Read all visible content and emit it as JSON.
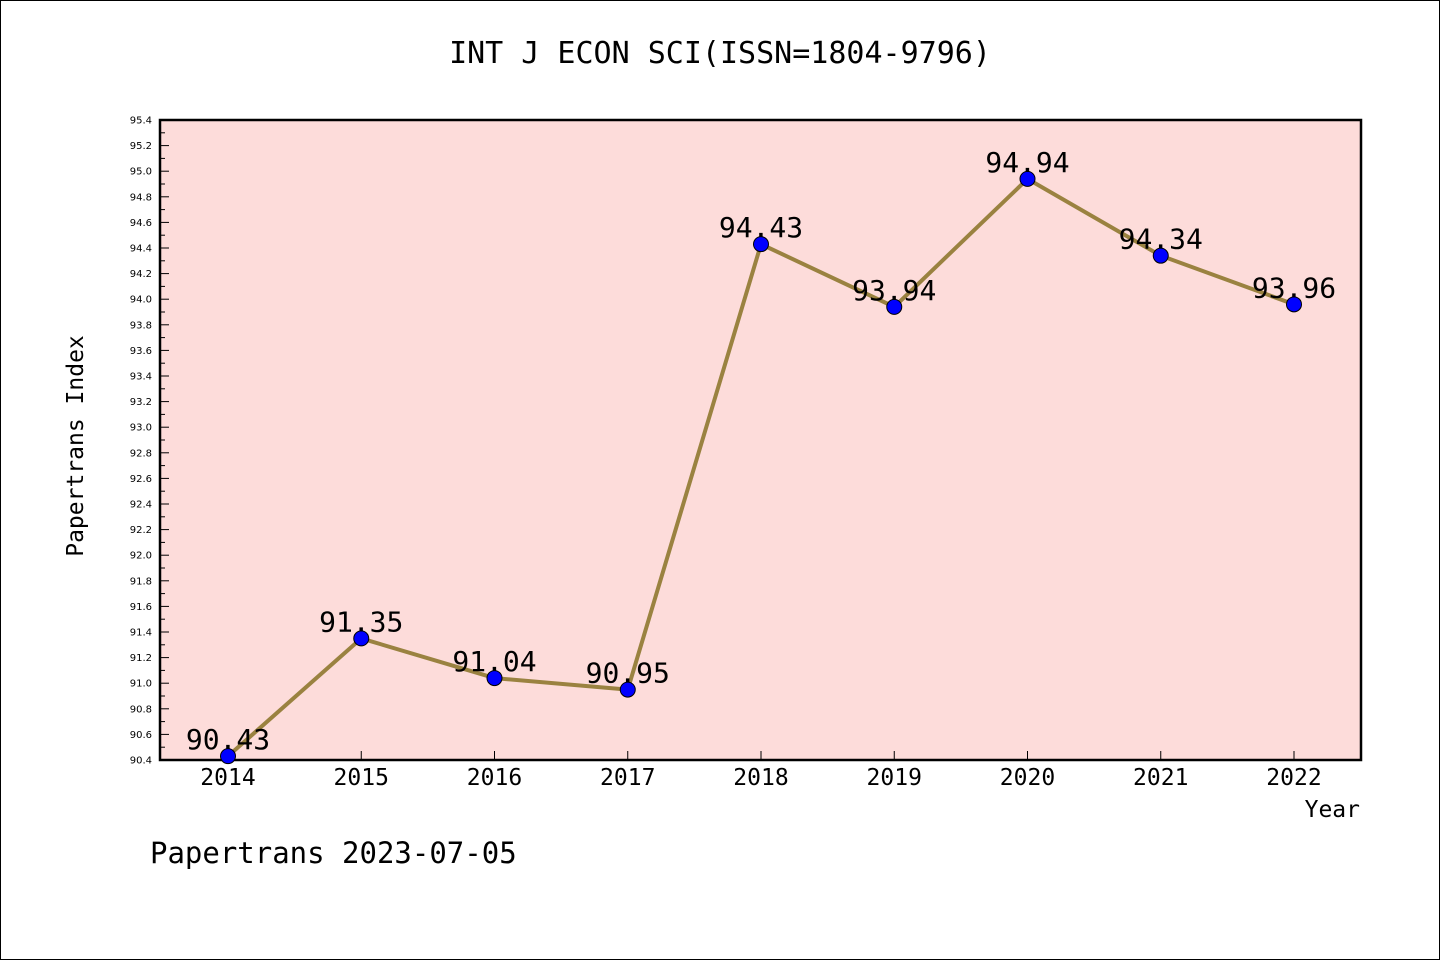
{
  "chart_data": {
    "type": "line",
    "title": "INT J ECON SCI(ISSN=1804-9796)",
    "xlabel": "Year",
    "ylabel": "Papertrans Index",
    "categories": [
      "2014",
      "2015",
      "2016",
      "2017",
      "2018",
      "2019",
      "2020",
      "2021",
      "2022"
    ],
    "values": [
      90.43,
      91.35,
      91.04,
      90.95,
      94.43,
      93.94,
      94.94,
      94.34,
      93.96
    ],
    "data_labels": [
      "90.43",
      "91.35",
      "91.04",
      "90.95",
      "94.43",
      "93.94",
      "94.94",
      "94.34",
      "93.96"
    ],
    "ylim": [
      90.4,
      95.4
    ],
    "yticks": [
      "90.4",
      "90.6",
      "90.8",
      "91.0",
      "91.2",
      "91.4",
      "91.6",
      "91.8",
      "92.0",
      "92.2",
      "92.4",
      "92.6",
      "92.8",
      "93.0",
      "93.2",
      "93.4",
      "93.6",
      "93.8",
      "94.0",
      "94.2",
      "94.4",
      "94.6",
      "94.8",
      "95.0",
      "95.2",
      "95.4"
    ],
    "grid": false,
    "legend": "none",
    "colors": {
      "plot_background": "#fddcda",
      "line": "#9a8240",
      "marker": "#0000ff"
    }
  },
  "footer": "Papertrans 2023-07-05"
}
